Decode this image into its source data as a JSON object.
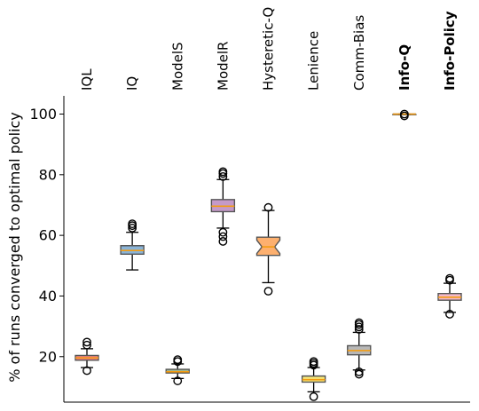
{
  "chart_data": {
    "type": "boxplot",
    "title": "",
    "xlabel": "",
    "ylabel": "% of runs converged to optimal policy",
    "ylim": [
      5,
      106
    ],
    "yticks": [
      20,
      40,
      60,
      80,
      100
    ],
    "categories": [
      "IQL",
      "IQ",
      "ModelS",
      "ModelR",
      "Hysteretic-Q",
      "Lenience",
      "Comm-Bias",
      "Info-Q",
      "Info-Policy"
    ],
    "bold_categories": [
      "Info-Q",
      "Info-Policy"
    ],
    "boxes": [
      {
        "label": "IQL",
        "q1": 18.8,
        "median": 19.6,
        "q3": 20.4,
        "whisker_low": 16.4,
        "whisker_high": 22.6,
        "notch": 0.3,
        "fliers": [
          15.4,
          23.8,
          24.8
        ],
        "color": "#f08080"
      },
      {
        "label": "IQ",
        "q1": 53.8,
        "median": 55.0,
        "q3": 56.6,
        "whisker_low": 48.6,
        "whisker_high": 61.0,
        "notch": 0.4,
        "fliers": [
          62.4,
          63.2,
          63.8
        ],
        "color": "#8ab4d8"
      },
      {
        "label": "ModelS",
        "q1": 14.6,
        "median": 15.0,
        "q3": 15.8,
        "whisker_low": 12.8,
        "whisker_high": 17.6,
        "notch": 0.2,
        "fliers": [
          12.0,
          18.4,
          19.0
        ],
        "color": "#a2b88e"
      },
      {
        "label": "ModelR",
        "q1": 67.8,
        "median": 69.6,
        "q3": 71.8,
        "whisker_low": 62.4,
        "whisker_high": 78.4,
        "notch": 0.5,
        "fliers": [
          61.0,
          59.6,
          58.0,
          79.4,
          80.4,
          81.0
        ],
        "color": "#c59ac8"
      },
      {
        "label": "Hysteretic-Q",
        "q1": 53.4,
        "median": 56.2,
        "q3": 59.4,
        "whisker_low": 44.4,
        "whisker_high": 68.2,
        "notch": 2.2,
        "fliers": [
          41.6,
          69.2
        ],
        "color": "#fdb06f"
      },
      {
        "label": "Lenience",
        "q1": 11.6,
        "median": 12.4,
        "q3": 13.6,
        "whisker_low": 8.4,
        "whisker_high": 16.4,
        "notch": 0.3,
        "fliers": [
          6.8,
          17.2,
          17.8,
          18.4
        ],
        "color": "#f7e87a"
      },
      {
        "label": "Comm-Bias",
        "q1": 20.6,
        "median": 22.0,
        "q3": 23.6,
        "whisker_low": 15.6,
        "whisker_high": 28.0,
        "notch": 0.5,
        "fliers": [
          14.2,
          15.0,
          29.0,
          29.8,
          30.6,
          31.2
        ],
        "color": "#b7b7b7"
      },
      {
        "label": "Info-Q",
        "q1": 99.8,
        "median": 100.0,
        "q3": 100.0,
        "whisker_low": 99.8,
        "whisker_high": 100.0,
        "notch": 0.05,
        "fliers": [
          99.4,
          100.0
        ],
        "color": "#f08080"
      },
      {
        "label": "Info-Policy",
        "q1": 38.6,
        "median": 39.6,
        "q3": 40.8,
        "whisker_low": 34.6,
        "whisker_high": 44.2,
        "notch": 0.3,
        "fliers": [
          34.0,
          45.2,
          45.8
        ],
        "color": "#f4b8c8"
      }
    ],
    "median_color": "#f39c12",
    "grid": false,
    "legend": "none"
  }
}
